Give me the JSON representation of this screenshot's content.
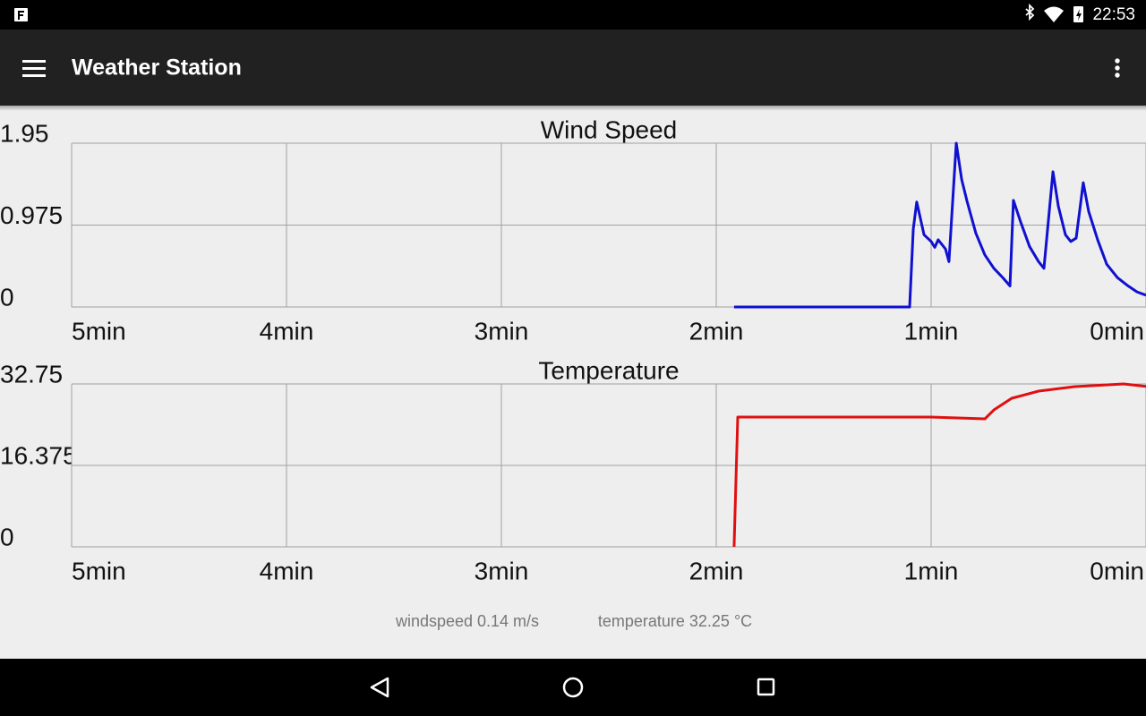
{
  "status_bar": {
    "time": "22:53"
  },
  "app_bar": {
    "title": "Weather Station"
  },
  "chart_data": [
    {
      "type": "line",
      "title": "Wind Speed",
      "x": [
        1.917,
        1.1,
        1.083,
        1.067,
        1.033,
        1.0,
        0.983,
        0.967,
        0.933,
        0.917,
        0.883,
        0.858,
        0.833,
        0.792,
        0.75,
        0.708,
        0.667,
        0.633,
        0.617,
        0.583,
        0.542,
        0.5,
        0.475,
        0.433,
        0.408,
        0.375,
        0.35,
        0.325,
        0.292,
        0.267,
        0.225,
        0.183,
        0.133,
        0.083,
        0.042,
        0
      ],
      "values": [
        0,
        0,
        0.93,
        1.25,
        0.86,
        0.78,
        0.71,
        0.8,
        0.69,
        0.54,
        1.95,
        1.52,
        1.26,
        0.88,
        0.62,
        0.46,
        0.35,
        0.25,
        1.27,
        1.01,
        0.72,
        0.54,
        0.46,
        1.61,
        1.2,
        0.86,
        0.78,
        0.82,
        1.48,
        1.14,
        0.8,
        0.51,
        0.35,
        0.25,
        0.18,
        0.14
      ],
      "color": "#1010d0",
      "xlim": [
        5,
        0
      ],
      "xticks": [
        {
          "value": 5,
          "label": "5min"
        },
        {
          "value": 4,
          "label": "4min"
        },
        {
          "value": 3,
          "label": "3min"
        },
        {
          "value": 2,
          "label": "2min"
        },
        {
          "value": 1,
          "label": "1min"
        },
        {
          "value": 0,
          "label": "0min"
        }
      ],
      "ylim": [
        0,
        1.95
      ],
      "yticks": [
        0,
        0.975,
        1.95
      ],
      "grid": true
    },
    {
      "type": "line",
      "title": "Temperature",
      "x": [
        1.917,
        1.9,
        1.0,
        0.75,
        0.708,
        0.625,
        0.5,
        0.333,
        0.104,
        0
      ],
      "values": [
        0,
        26.09,
        26.09,
        25.73,
        27.53,
        29.87,
        31.31,
        32.21,
        32.75,
        32.25
      ],
      "color": "#e01010",
      "xlim": [
        5,
        0
      ],
      "xticks": [
        {
          "value": 5,
          "label": "5min"
        },
        {
          "value": 4,
          "label": "4min"
        },
        {
          "value": 3,
          "label": "3min"
        },
        {
          "value": 2,
          "label": "2min"
        },
        {
          "value": 1,
          "label": "1min"
        },
        {
          "value": 0,
          "label": "0min"
        }
      ],
      "ylim": [
        0,
        32.75
      ],
      "yticks": [
        0,
        16.375,
        32.75
      ],
      "grid": true
    }
  ],
  "footer": {
    "windspeed": "windspeed 0.14 m/s",
    "temperature": "temperature 32.25 °C"
  }
}
